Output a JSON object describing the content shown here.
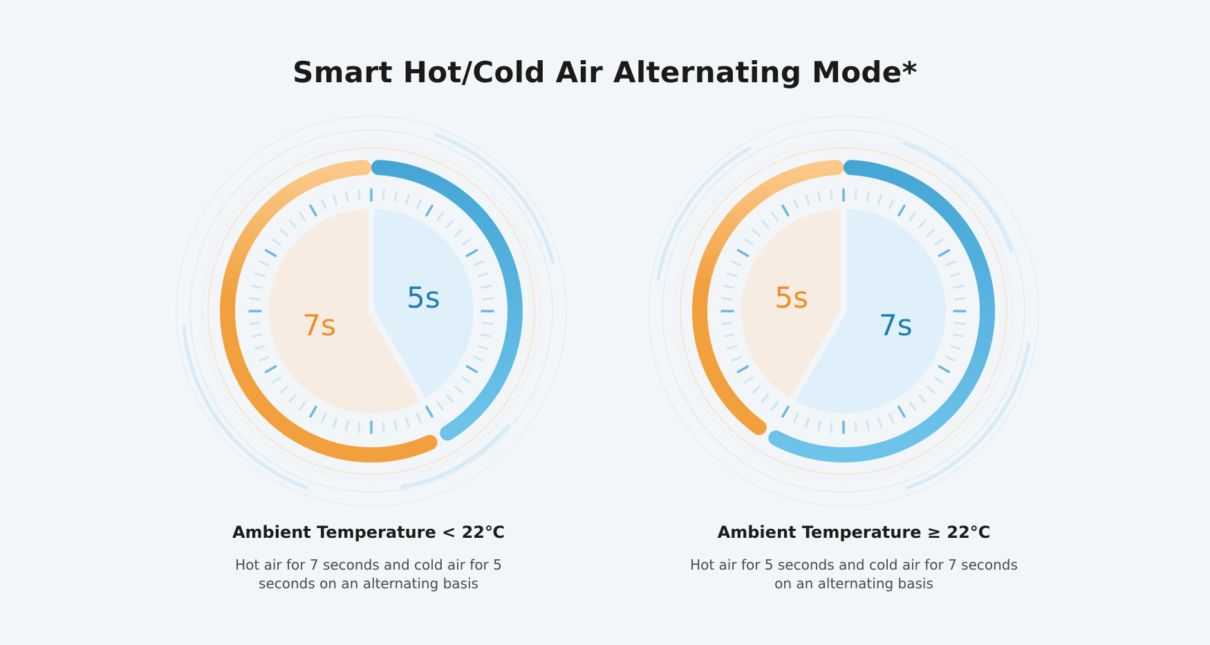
{
  "title": "Smart Hot/Cold Air Alternating Mode*",
  "colors": {
    "hot": "#f2a03d",
    "hot_light": "#fbc98a",
    "cold": "#45a6d6",
    "cold_light": "#6ec3ea",
    "hot_fill": "#f6ece2",
    "cold_fill": "#dff0fa",
    "hot_text": "#ee8f25",
    "cold_text": "#1d7db1"
  },
  "modes": [
    {
      "hot_seconds": 7,
      "cold_seconds": 5,
      "hot_label": "7s",
      "cold_label": "5s",
      "condition": "Ambient Temperature < 22℃",
      "description_line1": "Hot air for 7 seconds and cold air for 5",
      "description_line2": "seconds on an alternating basis"
    },
    {
      "hot_seconds": 5,
      "cold_seconds": 7,
      "hot_label": "5s",
      "cold_label": "7s",
      "condition": "Ambient Temperature ≥ 22°C",
      "description_line1": "Hot air for 5 seconds and cold air for 7 seconds",
      "description_line2": "on an alternating basis"
    }
  ]
}
